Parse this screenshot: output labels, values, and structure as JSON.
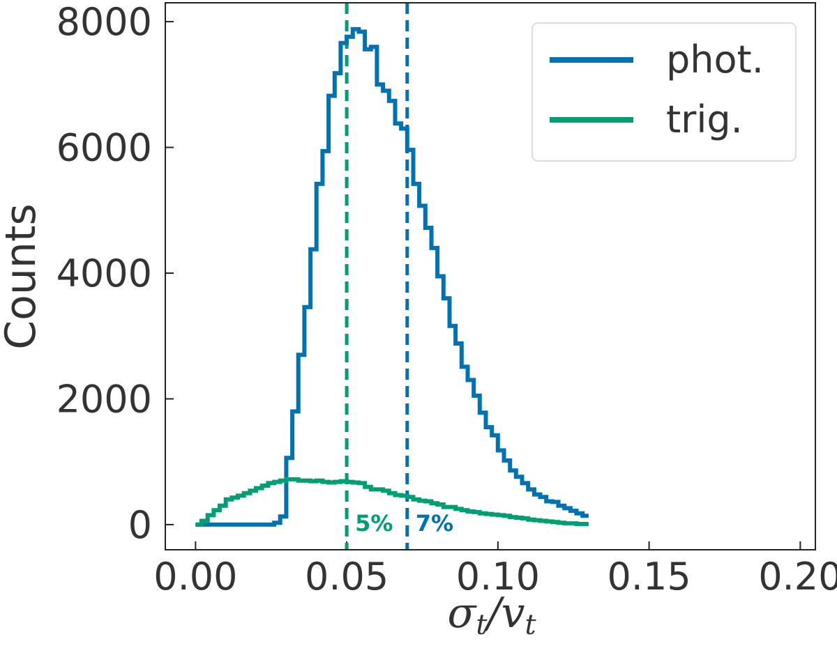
{
  "chart_data": {
    "type": "histogram",
    "xlabel": "σt/vt",
    "xlabel_parts": {
      "sym1": "σ",
      "sub1": "t",
      "sep": "/",
      "sym2": "v",
      "sub2": "t"
    },
    "ylabel": "Counts",
    "xlim": [
      -0.01,
      0.205
    ],
    "ylim": [
      -400,
      8300
    ],
    "xticks": [
      0.0,
      0.05,
      0.1,
      0.15,
      0.2
    ],
    "xtick_labels": [
      "0.00",
      "0.05",
      "0.10",
      "0.15",
      "0.20"
    ],
    "yticks": [
      0,
      2000,
      4000,
      6000,
      8000
    ],
    "ytick_labels": [
      "0",
      "2000",
      "4000",
      "6000",
      "8000"
    ],
    "grid": false,
    "legend_position": "top-right",
    "bin_edges_start": 0.0,
    "bin_width": 0.002,
    "series": [
      {
        "name": "phot.",
        "color": "#0072B2",
        "values": [
          0,
          0,
          0,
          0,
          0,
          0,
          0,
          0,
          0,
          0,
          0,
          0,
          0,
          30,
          130,
          1060,
          1800,
          2700,
          3460,
          4380,
          5420,
          5940,
          6820,
          7180,
          7660,
          7760,
          7880,
          7840,
          7560,
          7600,
          7000,
          6900,
          6740,
          6380,
          6300,
          5960,
          5420,
          5070,
          4720,
          4400,
          3950,
          3600,
          3160,
          2880,
          2510,
          2300,
          2050,
          1780,
          1550,
          1420,
          1180,
          1020,
          860,
          760,
          660,
          560,
          480,
          440,
          370,
          360,
          300,
          260,
          220,
          180,
          140
        ]
      },
      {
        "name": "trig.",
        "color": "#009E73",
        "values": [
          0,
          60,
          150,
          230,
          300,
          400,
          430,
          460,
          500,
          540,
          580,
          620,
          660,
          680,
          700,
          720,
          720,
          700,
          700,
          690,
          700,
          680,
          670,
          680,
          690,
          680,
          670,
          660,
          600,
          560,
          560,
          540,
          500,
          470,
          460,
          440,
          400,
          380,
          370,
          340,
          320,
          280,
          280,
          250,
          230,
          210,
          200,
          180,
          170,
          160,
          150,
          140,
          120,
          110,
          100,
          80,
          70,
          60,
          50,
          40,
          30,
          20,
          20,
          10,
          10
        ]
      }
    ],
    "vlines": [
      {
        "x": 0.05,
        "color": "#009E73",
        "label": "5%"
      },
      {
        "x": 0.07,
        "color": "#0072B2",
        "label": "7%"
      }
    ]
  }
}
